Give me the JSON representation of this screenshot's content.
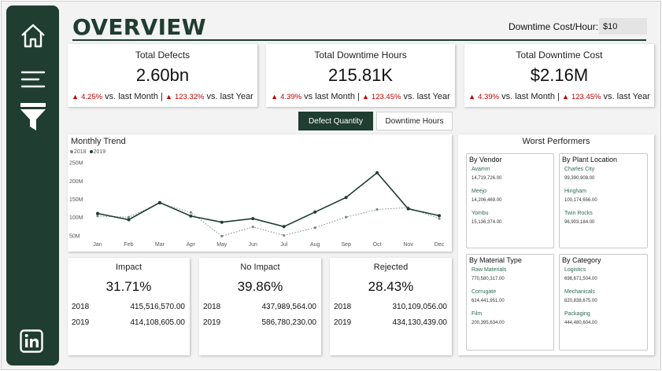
{
  "header": {
    "title": "OVERVIEW",
    "param_label": "Downtime Cost/Hour:",
    "param_value": "$10"
  },
  "sidebar": {
    "icons": [
      "home-icon",
      "menu-icon",
      "filter-icon",
      "linkedin-icon"
    ]
  },
  "kpis": [
    {
      "title": "Total Defects",
      "value": "2.60bn",
      "mom": "4.25%",
      "mom_label": "vs. last Month |",
      "yoy": "123.32%",
      "yoy_label": "vs. last Year"
    },
    {
      "title": "Total Downtime Hours",
      "value": "215.81K",
      "mom": "4.39%",
      "mom_label": "vs last Month |",
      "yoy": "123.45%",
      "yoy_label": "vs. last Year"
    },
    {
      "title": "Total Downtime Cost",
      "value": "$2.16M",
      "mom": "4.39%",
      "mom_label": "vs. last Month |",
      "yoy": "123.45%",
      "yoy_label": "vs. last Year"
    }
  ],
  "toggle": {
    "active": "Defect Quantity",
    "inactive": "Downtime Hours"
  },
  "colors": {
    "primary": "#1f3d31",
    "up_red": "#c00000",
    "series_2018": "#7a8a80",
    "series_2019": "#1f3d31"
  },
  "chart_data": {
    "type": "line",
    "title": "Monthly Trend",
    "categories": [
      "Jan",
      "Feb",
      "Mar",
      "Apr",
      "May",
      "Jun",
      "Jul",
      "Aug",
      "Sep",
      "Oct",
      "Nov",
      "Dec"
    ],
    "yticks": [
      "250M",
      "200M",
      "150M",
      "100M",
      "50M"
    ],
    "ylim": [
      40,
      260
    ],
    "series": [
      {
        "name": "2018",
        "style": "dotted",
        "values": [
          105,
          102,
          140,
          115,
          50,
          75,
          52,
          73,
          102,
          123,
          128,
          98
        ]
      },
      {
        "name": "2019",
        "style": "solid",
        "values": [
          112,
          95,
          142,
          105,
          88,
          98,
          76,
          116,
          156,
          224,
          125,
          106
        ]
      }
    ]
  },
  "impact_cards": [
    {
      "title": "Impact",
      "value": "31.71%",
      "rows": [
        {
          "year": "2018",
          "value": "415,516,570.00"
        },
        {
          "year": "2019",
          "value": "414,108,605.00"
        }
      ]
    },
    {
      "title": "No Impact",
      "value": "39.86%",
      "rows": [
        {
          "year": "2018",
          "value": "437,989,564.00"
        },
        {
          "year": "2019",
          "value": "586,780,230.00"
        }
      ]
    },
    {
      "title": "Rejected",
      "value": "28.43%",
      "rows": [
        {
          "year": "2018",
          "value": "310,109,056.00"
        },
        {
          "year": "2019",
          "value": "434,130,439.00"
        }
      ]
    }
  ],
  "worst": {
    "title": "Worst Performers",
    "groups": [
      {
        "title": "By Vendor",
        "items": [
          {
            "name": "Avamm",
            "value": "14,719,726.00"
          },
          {
            "name": "Meejo",
            "value": "14,206,469.00"
          },
          {
            "name": "Yombu",
            "value": "15,136,374.00"
          }
        ]
      },
      {
        "title": "By Plant Location",
        "items": [
          {
            "name": "Charles City",
            "value": "99,390,908.00"
          },
          {
            "name": "Hingham",
            "value": "100,174,656.00"
          },
          {
            "name": "Twin Rocks",
            "value": "96,903,184.00"
          }
        ]
      },
      {
        "title": "By Material Type",
        "items": [
          {
            "name": "Raw Materials",
            "value": "770,580,317.00"
          },
          {
            "name": "Corrugate",
            "value": "624,441,951.00"
          },
          {
            "name": "Film",
            "value": "200,395,634.00"
          }
        ]
      },
      {
        "title": "By Category",
        "items": [
          {
            "name": "Logistics",
            "value": "698,671,504.00"
          },
          {
            "name": "Mechanicals",
            "value": "820,838,675.00"
          },
          {
            "name": "Packaging",
            "value": "444,480,604.00"
          }
        ]
      }
    ]
  }
}
